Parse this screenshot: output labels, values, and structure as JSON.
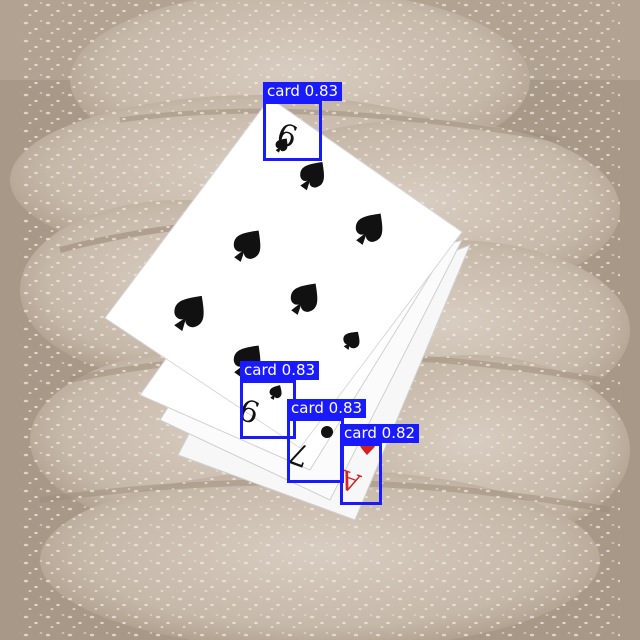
{
  "detections": [
    {
      "label": "card",
      "score": "0.83"
    },
    {
      "label": "card",
      "score": "0.83"
    },
    {
      "label": "card",
      "score": "0.83"
    },
    {
      "label": "card",
      "score": "0.82"
    }
  ],
  "colors": {
    "box": "#1a1aff",
    "label_text": "#ffffff",
    "bread": "#c9bcae",
    "background": "#a89888"
  }
}
